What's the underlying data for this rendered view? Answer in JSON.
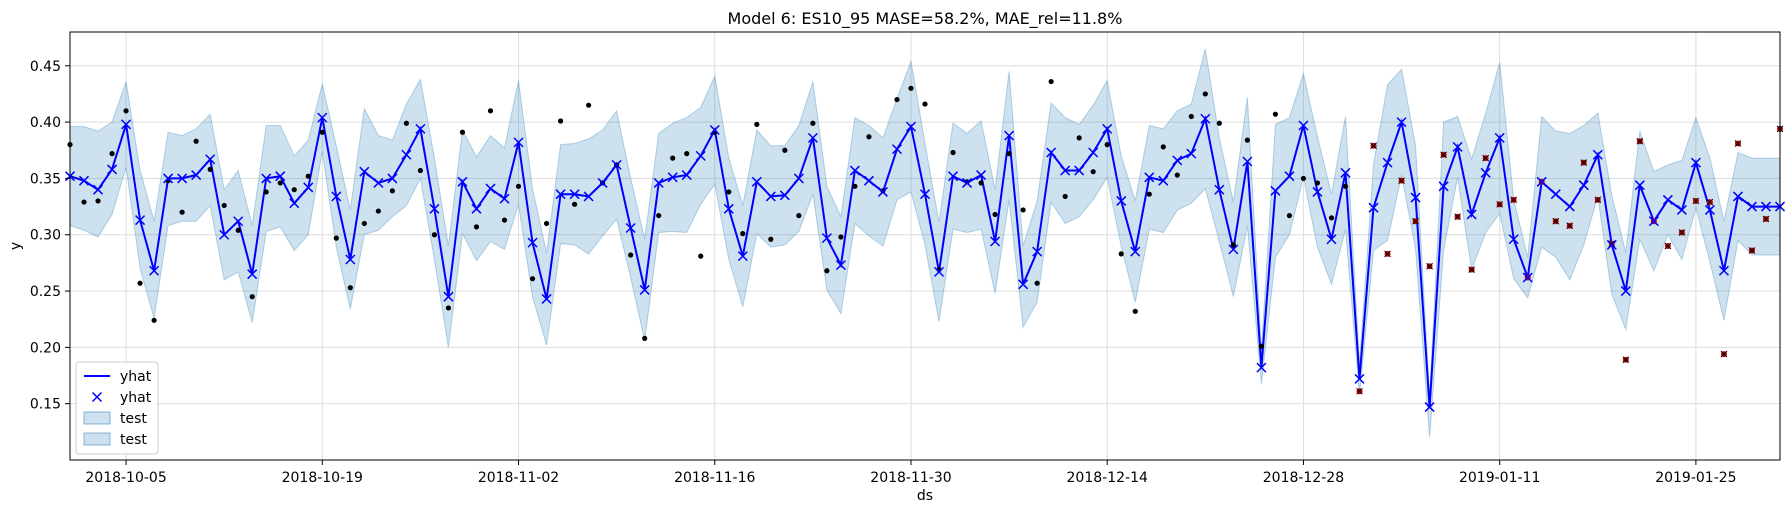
{
  "chart_data": {
    "type": "line",
    "title": "Model 6: ES10_95 MASE=58.2%, MAE_rel=11.8%",
    "xlabel": "ds",
    "ylabel": "y",
    "x_start": "2018-10-01",
    "x_range_days": [
      0,
      122
    ],
    "ylim": [
      0.1,
      0.48
    ],
    "grid": true,
    "legend_position": "lower-left",
    "x_ticks": [
      {
        "label": "2018-10-05",
        "day": 4
      },
      {
        "label": "2018-10-19",
        "day": 18
      },
      {
        "label": "2018-11-02",
        "day": 32
      },
      {
        "label": "2018-11-16",
        "day": 46
      },
      {
        "label": "2018-11-30",
        "day": 60
      },
      {
        "label": "2018-12-14",
        "day": 74
      },
      {
        "label": "2018-12-28",
        "day": 88
      },
      {
        "label": "2019-01-11",
        "day": 102
      },
      {
        "label": "2019-01-25",
        "day": 116
      }
    ],
    "y_ticks": [
      0.15,
      0.2,
      0.25,
      0.3,
      0.35,
      0.4,
      0.45
    ],
    "legend": [
      {
        "label": "yhat",
        "kind": "line"
      },
      {
        "label": "yhat",
        "kind": "marker"
      },
      {
        "label": "test",
        "kind": "band"
      },
      {
        "label": "test",
        "kind": "band"
      }
    ],
    "colors": {
      "yhat": "#0000ff",
      "band": "#1f77b4",
      "train_points": "#000000",
      "test_points": "#cc0000"
    },
    "yhat_days": [
      0,
      1,
      2,
      3,
      4,
      5,
      6,
      7,
      8,
      9,
      10,
      11,
      12,
      13,
      14,
      15,
      16,
      17,
      18,
      19,
      20,
      21,
      22,
      23,
      24,
      25,
      26,
      27,
      28,
      29,
      30,
      31,
      32,
      33,
      34,
      35,
      36,
      37,
      38,
      39,
      40,
      41,
      42,
      43,
      44,
      45,
      46,
      47,
      48,
      49,
      50,
      51,
      52,
      53,
      54,
      55,
      56,
      57,
      58,
      59,
      60,
      61,
      62,
      63,
      64,
      65,
      66,
      67,
      68,
      69,
      70,
      71,
      72,
      73,
      74,
      75,
      76,
      77,
      78,
      79,
      80,
      81,
      82,
      83,
      84,
      85,
      86,
      87,
      88,
      89,
      90,
      91,
      92,
      93,
      94,
      95,
      96,
      97,
      98,
      99,
      100,
      101,
      102,
      103,
      104,
      105,
      106,
      107,
      108,
      109,
      110,
      111,
      112,
      113,
      114,
      115,
      116,
      117,
      118,
      119,
      120,
      121,
      122
    ],
    "yhat": [
      0.352,
      0.348,
      0.34,
      0.358,
      0.398,
      0.313,
      0.268,
      0.35,
      0.35,
      0.353,
      0.367,
      0.3,
      0.312,
      0.265,
      0.35,
      0.352,
      0.328,
      0.342,
      0.404,
      0.334,
      0.278,
      0.356,
      0.346,
      0.35,
      0.371,
      0.394,
      0.323,
      0.245,
      0.347,
      0.323,
      0.341,
      0.332,
      0.382,
      0.293,
      0.243,
      0.336,
      0.336,
      0.334,
      0.346,
      0.362,
      0.306,
      0.251,
      0.346,
      0.351,
      0.353,
      0.37,
      0.393,
      0.323,
      0.281,
      0.347,
      0.334,
      0.335,
      0.35,
      0.386,
      0.297,
      0.273,
      0.357,
      0.348,
      0.338,
      0.376,
      0.396,
      0.336,
      0.267,
      0.352,
      0.346,
      0.353,
      0.294,
      0.388,
      0.256,
      0.285,
      0.373,
      0.357,
      0.357,
      0.373,
      0.394,
      0.33,
      0.285,
      0.351,
      0.348,
      0.366,
      0.372,
      0.403,
      0.34,
      0.287,
      0.365,
      0.182,
      0.339,
      0.352,
      0.397,
      0.338,
      0.296,
      0.355,
      0.172,
      0.324,
      0.364,
      0.4,
      0.333,
      0.147,
      0.343,
      0.378,
      0.318,
      0.355,
      0.386,
      0.296,
      0.262,
      0.347,
      0.336,
      0.325,
      0.344,
      0.371,
      0.291,
      0.25,
      0.344,
      0.312,
      0.331,
      0.322,
      0.364,
      0.322,
      0.268,
      0.334,
      0.325,
      0.325,
      0.325
    ],
    "band_upper": [
      0.396,
      0.396,
      0.392,
      0.4,
      0.436,
      0.357,
      0.312,
      0.391,
      0.388,
      0.394,
      0.407,
      0.34,
      0.357,
      0.308,
      0.397,
      0.397,
      0.37,
      0.384,
      0.434,
      0.379,
      0.322,
      0.412,
      0.388,
      0.384,
      0.416,
      0.438,
      0.368,
      0.29,
      0.393,
      0.369,
      0.388,
      0.377,
      0.437,
      0.341,
      0.284,
      0.38,
      0.381,
      0.385,
      0.393,
      0.41,
      0.35,
      0.296,
      0.39,
      0.399,
      0.404,
      0.413,
      0.441,
      0.368,
      0.326,
      0.393,
      0.379,
      0.379,
      0.397,
      0.436,
      0.343,
      0.316,
      0.404,
      0.397,
      0.386,
      0.421,
      0.454,
      0.381,
      0.311,
      0.399,
      0.39,
      0.401,
      0.34,
      0.445,
      0.29,
      0.33,
      0.417,
      0.404,
      0.398,
      0.415,
      0.437,
      0.37,
      0.33,
      0.397,
      0.394,
      0.41,
      0.416,
      0.465,
      0.386,
      0.329,
      0.422,
      0.197,
      0.398,
      0.404,
      0.443,
      0.387,
      0.336,
      0.405,
      0.186,
      0.362,
      0.433,
      0.447,
      0.379,
      0.156,
      0.4,
      0.405,
      0.367,
      0.408,
      0.453,
      0.331,
      0.28,
      0.405,
      0.392,
      0.39,
      0.397,
      0.408,
      0.335,
      0.284,
      0.392,
      0.356,
      0.362,
      0.366,
      0.404,
      0.368,
      0.312,
      0.373,
      0.368,
      0.368,
      0.368
    ],
    "band_lower": [
      0.308,
      0.304,
      0.298,
      0.318,
      0.36,
      0.27,
      0.226,
      0.308,
      0.312,
      0.312,
      0.326,
      0.26,
      0.267,
      0.222,
      0.303,
      0.307,
      0.286,
      0.3,
      0.374,
      0.289,
      0.234,
      0.3,
      0.304,
      0.316,
      0.326,
      0.35,
      0.278,
      0.2,
      0.301,
      0.277,
      0.294,
      0.287,
      0.327,
      0.245,
      0.202,
      0.292,
      0.291,
      0.283,
      0.299,
      0.314,
      0.262,
      0.206,
      0.302,
      0.303,
      0.302,
      0.327,
      0.345,
      0.278,
      0.236,
      0.301,
      0.289,
      0.291,
      0.303,
      0.336,
      0.251,
      0.23,
      0.31,
      0.299,
      0.29,
      0.331,
      0.338,
      0.291,
      0.223,
      0.305,
      0.302,
      0.305,
      0.248,
      0.331,
      0.218,
      0.24,
      0.329,
      0.31,
      0.316,
      0.331,
      0.351,
      0.29,
      0.24,
      0.305,
      0.302,
      0.322,
      0.328,
      0.341,
      0.294,
      0.245,
      0.308,
      0.167,
      0.28,
      0.3,
      0.351,
      0.289,
      0.256,
      0.305,
      0.158,
      0.286,
      0.295,
      0.353,
      0.287,
      0.12,
      0.286,
      0.351,
      0.269,
      0.302,
      0.319,
      0.261,
      0.244,
      0.289,
      0.28,
      0.26,
      0.291,
      0.334,
      0.247,
      0.216,
      0.296,
      0.268,
      0.3,
      0.278,
      0.324,
      0.276,
      0.224,
      0.295,
      0.282,
      0.282,
      0.282
    ],
    "train_points": [
      [
        0,
        0.38
      ],
      [
        1,
        0.329
      ],
      [
        2,
        0.33
      ],
      [
        3,
        0.372
      ],
      [
        4,
        0.41
      ],
      [
        5,
        0.257
      ],
      [
        6,
        0.224
      ],
      [
        7,
        0.348
      ],
      [
        8,
        0.32
      ],
      [
        9,
        0.383
      ],
      [
        10,
        0.358
      ],
      [
        11,
        0.326
      ],
      [
        12,
        0.304
      ],
      [
        13,
        0.245
      ],
      [
        14,
        0.338
      ],
      [
        15,
        0.346
      ],
      [
        16,
        0.34
      ],
      [
        17,
        0.352
      ],
      [
        18,
        0.391
      ],
      [
        19,
        0.297
      ],
      [
        20,
        0.253
      ],
      [
        21,
        0.31
      ],
      [
        22,
        0.321
      ],
      [
        23,
        0.339
      ],
      [
        24,
        0.399
      ],
      [
        25,
        0.357
      ],
      [
        26,
        0.3
      ],
      [
        27,
        0.235
      ],
      [
        28,
        0.391
      ],
      [
        29,
        0.307
      ],
      [
        30,
        0.41
      ],
      [
        31,
        0.313
      ],
      [
        32,
        0.343
      ],
      [
        33,
        0.261
      ],
      [
        34,
        0.31
      ],
      [
        35,
        0.401
      ],
      [
        36,
        0.327
      ],
      [
        37,
        0.415
      ],
      [
        38,
        0.346
      ],
      [
        39,
        0.362
      ],
      [
        40,
        0.282
      ],
      [
        41,
        0.208
      ],
      [
        42,
        0.317
      ],
      [
        43,
        0.368
      ],
      [
        44,
        0.372
      ],
      [
        45,
        0.281
      ],
      [
        46,
        0.391
      ],
      [
        47,
        0.338
      ],
      [
        48,
        0.301
      ],
      [
        49,
        0.398
      ],
      [
        50,
        0.296
      ],
      [
        51,
        0.375
      ],
      [
        52,
        0.317
      ],
      [
        53,
        0.399
      ],
      [
        54,
        0.268
      ],
      [
        55,
        0.298
      ],
      [
        56,
        0.343
      ],
      [
        57,
        0.387
      ],
      [
        58,
        0.339
      ],
      [
        59,
        0.42
      ],
      [
        60,
        0.43
      ],
      [
        61,
        0.416
      ],
      [
        62,
        0.269
      ],
      [
        63,
        0.373
      ],
      [
        64,
        0.347
      ],
      [
        65,
        0.346
      ],
      [
        66,
        0.318
      ],
      [
        67,
        0.372
      ],
      [
        68,
        0.322
      ],
      [
        69,
        0.257
      ],
      [
        70,
        0.436
      ],
      [
        71,
        0.334
      ],
      [
        72,
        0.386
      ],
      [
        73,
        0.356
      ],
      [
        74,
        0.38
      ],
      [
        75,
        0.283
      ],
      [
        76,
        0.232
      ],
      [
        77,
        0.336
      ],
      [
        78,
        0.378
      ],
      [
        79,
        0.353
      ],
      [
        80,
        0.405
      ],
      [
        81,
        0.425
      ],
      [
        82,
        0.399
      ],
      [
        83,
        0.291
      ],
      [
        84,
        0.384
      ],
      [
        85,
        0.201
      ],
      [
        86,
        0.407
      ],
      [
        87,
        0.317
      ],
      [
        88,
        0.35
      ],
      [
        89,
        0.346
      ],
      [
        90,
        0.315
      ],
      [
        91,
        0.343
      ]
    ],
    "test_points": [
      [
        92,
        0.161
      ],
      [
        93,
        0.379
      ],
      [
        94,
        0.283
      ],
      [
        95,
        0.348
      ],
      [
        96,
        0.312
      ],
      [
        97,
        0.272
      ],
      [
        98,
        0.371
      ],
      [
        99,
        0.316
      ],
      [
        100,
        0.269
      ],
      [
        101,
        0.368
      ],
      [
        102,
        0.327
      ],
      [
        103,
        0.331
      ],
      [
        104,
        0.262
      ],
      [
        105,
        0.347
      ],
      [
        106,
        0.312
      ],
      [
        107,
        0.308
      ],
      [
        108,
        0.364
      ],
      [
        109,
        0.331
      ],
      [
        110,
        0.292
      ],
      [
        111,
        0.189
      ],
      [
        112,
        0.383
      ],
      [
        113,
        0.312
      ],
      [
        114,
        0.29
      ],
      [
        115,
        0.302
      ],
      [
        116,
        0.33
      ],
      [
        117,
        0.329
      ],
      [
        118,
        0.194
      ],
      [
        119,
        0.381
      ],
      [
        120,
        0.286
      ],
      [
        121,
        0.314
      ],
      [
        122,
        0.394
      ]
    ]
  }
}
